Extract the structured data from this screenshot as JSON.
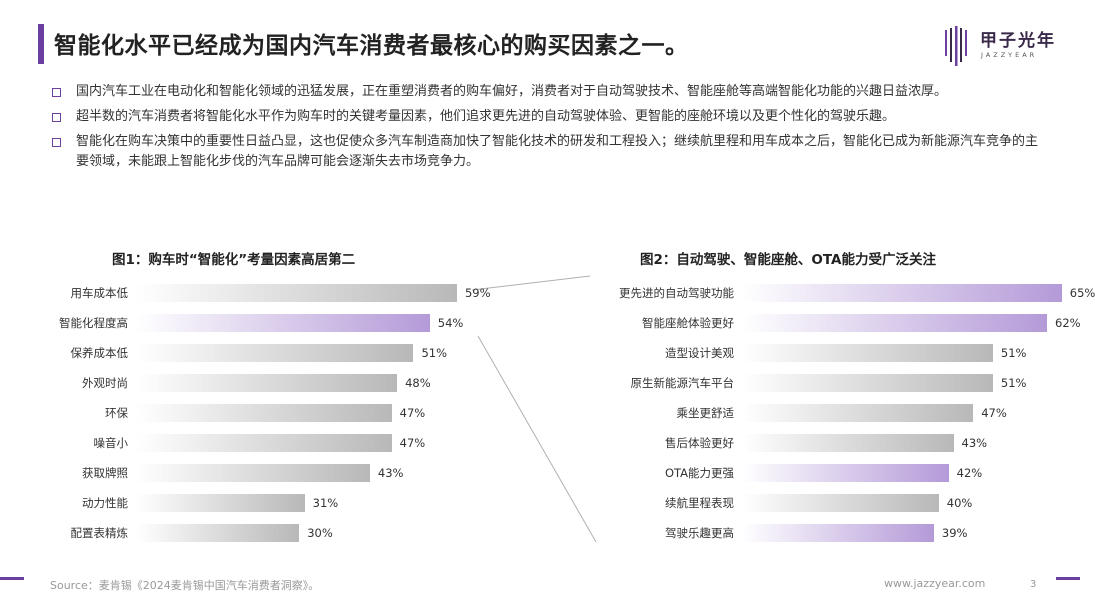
{
  "header": {
    "title": "智能化水平已经成为国内汽车消费者最核心的购买因素之一。",
    "logo_cn": "甲子光年",
    "logo_en": "JAZZYEAR",
    "accent_color": "#6b3fa0"
  },
  "bullets": [
    "国内汽车工业在电动化和智能化领域的迅猛发展，正在重塑消费者的购车偏好，消费者对于自动驾驶技术、智能座舱等高端智能化功能的兴趣日益浓厚。",
    "超半数的汽车消费者将智能化水平作为购车时的关键考量因素，他们追求更先进的自动驾驶体验、更智能的座舱环境以及更个性化的驾驶乐趣。",
    "智能化在购车决策中的重要性日益凸显，这也促使众多汽车制造商加快了智能化技术的研发和工程投入；继续航里程和用车成本之后，智能化已成为新能源汽车竞争的主要领域，未能跟上智能化步伐的汽车品牌可能会逐渐失去市场竞争力。"
  ],
  "chart_data": [
    {
      "type": "bar",
      "title": "图1：购车时“智能化”考量因素高居第二",
      "categories": [
        "用车成本低",
        "智能化程度高",
        "保养成本低",
        "外观时尚",
        "环保",
        "噪音小",
        "获取牌照",
        "动力性能",
        "配置表精炼"
      ],
      "values": [
        59,
        54,
        51,
        48,
        47,
        47,
        43,
        31,
        30
      ],
      "value_labels": [
        "59%",
        "54%",
        "51%",
        "48%",
        "47%",
        "47%",
        "43%",
        "31%",
        "30%"
      ],
      "highlight": [
        false,
        true,
        false,
        false,
        false,
        false,
        false,
        false,
        false
      ],
      "xlim": [
        0,
        100
      ]
    },
    {
      "type": "bar",
      "title": "图2：自动驾驶、智能座舱、OTA能力受广泛关注",
      "categories": [
        "更先进的自动驾驶功能",
        "智能座舱体验更好",
        "造型设计美观",
        "原生新能源汽车平台",
        "乘坐更舒适",
        "售后体验更好",
        "OTA能力更强",
        "续航里程表现",
        "驾驶乐趣更高"
      ],
      "values": [
        65,
        62,
        51,
        51,
        47,
        43,
        42,
        40,
        39
      ],
      "value_labels": [
        "65%",
        "62%",
        "51%",
        "51%",
        "47%",
        "43%",
        "42%",
        "40%",
        "39%"
      ],
      "highlight": [
        true,
        true,
        false,
        false,
        false,
        false,
        true,
        false,
        true
      ],
      "xlim": [
        0,
        100
      ]
    }
  ],
  "footer": {
    "source": "Source：麦肯锡《2024麦肯锡中国汽车消费者洞察》。",
    "site": "www.jazzyear.com",
    "page": "3"
  }
}
